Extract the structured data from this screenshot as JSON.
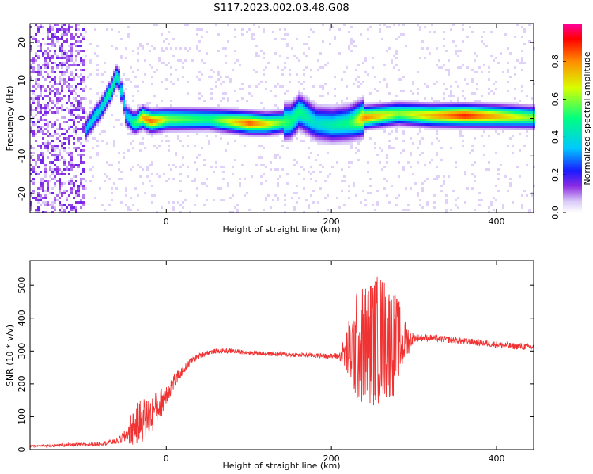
{
  "title": "S117.2023.002.03.48.G08",
  "colors": {
    "snr_line": "#f03232",
    "axis": "#000000",
    "colorbar": [
      "#ffffff",
      "#d9c8f7",
      "#8b2be2",
      "#1a1aff",
      "#00c8ff",
      "#00ff80",
      "#d8ff00",
      "#ff8c00",
      "#ff0000",
      "#ff00a0"
    ]
  },
  "chart_data": [
    {
      "type": "heatmap",
      "xlabel": "Height of straight line (km)",
      "ylabel": "Frequency (Hz)",
      "xlim": [
        -165,
        445
      ],
      "ylim": [
        -25,
        25
      ],
      "xticks": [
        0,
        200,
        400
      ],
      "yticks": [
        -20,
        -10,
        0,
        10,
        20
      ],
      "colorbar": {
        "label": "Normalized spectral amplitude",
        "range": [
          0.0,
          1.0
        ],
        "ticks": [
          0.0,
          0.2,
          0.4,
          0.6,
          0.8
        ]
      },
      "ridge": {
        "note_free": true,
        "x": [
          -100,
          -90,
          -80,
          -70,
          -60,
          -50,
          -40,
          -30,
          -20,
          0,
          50,
          100,
          120,
          150,
          160,
          180,
          200,
          220,
          240,
          280,
          320,
          360,
          400,
          440
        ],
        "freq": [
          -3,
          0,
          3,
          7,
          12,
          1,
          -1,
          0.5,
          -0.5,
          0,
          0,
          -1,
          -1.2,
          -0.5,
          2,
          -1,
          -1.5,
          -1,
          0.5,
          1.5,
          1,
          1,
          0.8,
          0.5
        ],
        "amplitude": [
          0.35,
          0.4,
          0.4,
          0.5,
          0.45,
          0.35,
          0.5,
          0.75,
          0.85,
          0.6,
          0.5,
          0.85,
          0.7,
          0.5,
          0.5,
          0.4,
          0.45,
          0.5,
          0.8,
          0.6,
          0.75,
          0.9,
          0.75,
          0.6
        ]
      }
    },
    {
      "type": "line",
      "xlabel": "Height of straight line (km)",
      "ylabel": "SNR (10 * v/v)",
      "xlim": [
        -165,
        445
      ],
      "ylim": [
        0,
        575
      ],
      "xticks": [
        0,
        200,
        400
      ],
      "yticks": [
        0,
        100,
        200,
        300,
        400,
        500
      ],
      "series": [
        {
          "x": [
            -165,
            -140,
            -120,
            -100,
            -80,
            -60,
            -50,
            -40,
            -30,
            -20,
            -10,
            0,
            10,
            20,
            30,
            40,
            50,
            60,
            80,
            100,
            120,
            140,
            160,
            180,
            200,
            210,
            220,
            230,
            240,
            250,
            260,
            270,
            280,
            290,
            300,
            320,
            340,
            360,
            380,
            400,
            420,
            445
          ],
          "y": [
            10,
            12,
            14,
            15,
            18,
            25,
            40,
            70,
            90,
            100,
            130,
            170,
            210,
            240,
            270,
            285,
            295,
            300,
            300,
            295,
            292,
            290,
            288,
            286,
            284,
            285,
            300,
            310,
            320,
            330,
            340,
            330,
            320,
            330,
            340,
            340,
            335,
            330,
            325,
            320,
            315,
            312
          ],
          "spread": [
            3,
            4,
            5,
            5,
            6,
            8,
            20,
            60,
            70,
            60,
            50,
            40,
            25,
            12,
            10,
            8,
            8,
            7,
            7,
            7,
            7,
            7,
            7,
            7,
            8,
            12,
            90,
            170,
            190,
            200,
            200,
            180,
            150,
            60,
            12,
            10,
            10,
            10,
            10,
            10,
            10,
            10
          ]
        }
      ]
    }
  ]
}
